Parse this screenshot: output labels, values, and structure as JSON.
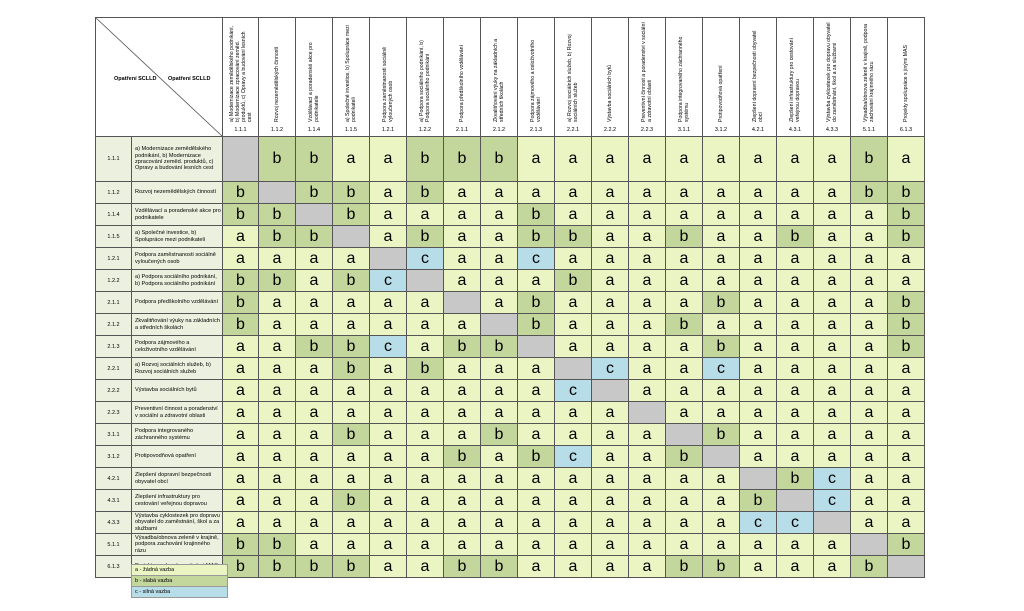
{
  "corner": {
    "left_label": "Opatření SCLLD",
    "right_label": "Opatření SCLLD"
  },
  "columns": [
    {
      "code": "1.1.1",
      "title": "a) Modernizace zemědělského podnikání, b) Modernizace zpracování zeměd. produktů, c) Opravy a budování lesních cest"
    },
    {
      "code": "1.1.2",
      "title": "Rozvoj nezemědělských činností"
    },
    {
      "code": "1.1.4",
      "title": "Vzdělávací a poradenské akce pro podnikatele"
    },
    {
      "code": "1.1.5",
      "title": "a) Společné investice, b) Spolupráce mezi podnikateli"
    },
    {
      "code": "1.2.1",
      "title": "Podpora zaměstnanosti sociálně vyloučených osob"
    },
    {
      "code": "1.2.2",
      "title": "a) Podpora sociálního podnikání, b) Podpora sociálního podnikání"
    },
    {
      "code": "2.1.1",
      "title": "Podpora předškolního vzdělávání"
    },
    {
      "code": "2.1.2",
      "title": "Zkvalitňování výuky na základních a středních školách"
    },
    {
      "code": "2.1.3",
      "title": "Podpora zájmového a celoživotního vzdělávání"
    },
    {
      "code": "2.2.1",
      "title": "a) Rozvoj sociálních služeb, b) Rozvoj sociálních služeb"
    },
    {
      "code": "2.2.2",
      "title": "Výstavba sociálních bytů"
    },
    {
      "code": "2.2.3",
      "title": "Preventivní činnost a poradenství v sociální a zdravotní oblasti"
    },
    {
      "code": "3.1.1",
      "title": "Podpora integrovaného záchranného systému"
    },
    {
      "code": "3.1.2",
      "title": "Protipovodňová opatření"
    },
    {
      "code": "4.2.1",
      "title": "Zlepšení dopravní bezpečnosti obyvatel obcí"
    },
    {
      "code": "4.3.1",
      "title": "Zlepšení infrastruktury pro cestování veřejnou dopravou"
    },
    {
      "code": "4.3.3",
      "title": "Výstavba cyklostezek pro dopravu obyvatel do zaměstnání, škol a za službami"
    },
    {
      "code": "5.1.1",
      "title": "Výsadba/obnova zeleně v krajině, podpora zachování krajinného rázu"
    },
    {
      "code": "6.1.3",
      "title": "Projekty spolupráce s jinými MAS"
    }
  ],
  "rows": [
    {
      "code": "1.1.1",
      "label": "a) Modernizace zemědělského podnikání, b) Modernizace zpracování zeměd. produktů, c) Opravy a budování lesních cest",
      "values": [
        "",
        "b",
        "b",
        "a",
        "a",
        "b",
        "b",
        "b",
        "a",
        "a",
        "a",
        "a",
        "a",
        "a",
        "a",
        "a",
        "a",
        "b",
        "a"
      ]
    },
    {
      "code": "1.1.2",
      "label": "Rozvoj nezemědělských činností",
      "values": [
        "b",
        "",
        "b",
        "b",
        "a",
        "b",
        "a",
        "a",
        "a",
        "a",
        "a",
        "a",
        "a",
        "a",
        "a",
        "a",
        "a",
        "b",
        "b"
      ]
    },
    {
      "code": "1.1.4",
      "label": "Vzdělávací a poradenské akce pro podnikatele",
      "values": [
        "b",
        "b",
        "",
        "b",
        "a",
        "a",
        "a",
        "a",
        "b",
        "a",
        "a",
        "a",
        "a",
        "a",
        "a",
        "a",
        "a",
        "a",
        "b"
      ]
    },
    {
      "code": "1.1.5",
      "label": "a) Společné investice, b) Spolupráce mezi podnikateli",
      "values": [
        "a",
        "b",
        "b",
        "",
        "a",
        "b",
        "a",
        "a",
        "b",
        "b",
        "a",
        "a",
        "b",
        "a",
        "a",
        "b",
        "a",
        "a",
        "b"
      ]
    },
    {
      "code": "1.2.1",
      "label": "Podpora zaměstnanosti sociálně vyloučených osob",
      "values": [
        "a",
        "a",
        "a",
        "a",
        "",
        "c",
        "a",
        "a",
        "c",
        "a",
        "a",
        "a",
        "a",
        "a",
        "a",
        "a",
        "a",
        "a",
        "a"
      ]
    },
    {
      "code": "1.2.2",
      "label": "a) Podpora sociálního podnikání, b) Podpora sociálního podnikání",
      "values": [
        "b",
        "b",
        "a",
        "b",
        "c",
        "",
        "a",
        "a",
        "a",
        "b",
        "a",
        "a",
        "a",
        "a",
        "a",
        "a",
        "a",
        "a",
        "a"
      ]
    },
    {
      "code": "2.1.1",
      "label": "Podpora předškolního vzdělávání",
      "values": [
        "b",
        "a",
        "a",
        "a",
        "a",
        "a",
        "",
        "a",
        "b",
        "a",
        "a",
        "a",
        "a",
        "b",
        "a",
        "a",
        "a",
        "a",
        "b"
      ]
    },
    {
      "code": "2.1.2",
      "label": "Zkvalitňování výuky na základních a středních školách",
      "values": [
        "b",
        "a",
        "a",
        "a",
        "a",
        "a",
        "a",
        "",
        "b",
        "a",
        "a",
        "a",
        "b",
        "a",
        "a",
        "a",
        "a",
        "a",
        "b"
      ]
    },
    {
      "code": "2.1.3",
      "label": "Podpora zájmového a celoživotního vzdělávání",
      "values": [
        "a",
        "a",
        "b",
        "b",
        "c",
        "a",
        "b",
        "b",
        "",
        "a",
        "a",
        "a",
        "a",
        "b",
        "a",
        "a",
        "a",
        "a",
        "b"
      ]
    },
    {
      "code": "2.2.1",
      "label": "a) Rozvoj sociálních služeb, b) Rozvoj sociálních služeb",
      "values": [
        "a",
        "a",
        "a",
        "b",
        "a",
        "b",
        "a",
        "a",
        "a",
        "",
        "c",
        "a",
        "a",
        "c",
        "a",
        "a",
        "a",
        "a",
        "a"
      ]
    },
    {
      "code": "2.2.2",
      "label": "Výstavba sociálních bytů",
      "values": [
        "a",
        "a",
        "a",
        "a",
        "a",
        "a",
        "a",
        "a",
        "a",
        "c",
        "",
        "a",
        "a",
        "a",
        "a",
        "a",
        "a",
        "a",
        "a"
      ]
    },
    {
      "code": "2.2.3",
      "label": "Preventivní činnost a poradenství v sociální a zdravotní oblasti",
      "values": [
        "a",
        "a",
        "a",
        "a",
        "a",
        "a",
        "a",
        "a",
        "a",
        "a",
        "a",
        "",
        "a",
        "a",
        "a",
        "a",
        "a",
        "a",
        "a"
      ]
    },
    {
      "code": "3.1.1",
      "label": "Podpora integrovaného záchranného systému",
      "values": [
        "a",
        "a",
        "a",
        "b",
        "a",
        "a",
        "a",
        "b",
        "a",
        "a",
        "a",
        "a",
        "",
        "b",
        "a",
        "a",
        "a",
        "a",
        "a"
      ]
    },
    {
      "code": "3.1.2",
      "label": "Protipovodňová opatření",
      "values": [
        "a",
        "a",
        "a",
        "a",
        "a",
        "a",
        "b",
        "a",
        "b",
        "c",
        "a",
        "a",
        "b",
        "",
        "a",
        "a",
        "a",
        "a",
        "a"
      ]
    },
    {
      "code": "4.2.1",
      "label": "Zlepšení dopravní bezpečnosti obyvatel obcí",
      "values": [
        "a",
        "a",
        "a",
        "a",
        "a",
        "a",
        "a",
        "a",
        "a",
        "a",
        "a",
        "a",
        "a",
        "a",
        "",
        "b",
        "c",
        "a",
        "a"
      ]
    },
    {
      "code": "4.3.1",
      "label": "Zlepšení infrastruktury pro cestování veřejnou dopravou",
      "values": [
        "a",
        "a",
        "a",
        "b",
        "a",
        "a",
        "a",
        "a",
        "a",
        "a",
        "a",
        "a",
        "a",
        "a",
        "b",
        "",
        "c",
        "a",
        "a"
      ]
    },
    {
      "code": "4.3.3",
      "label": "Výstavba cyklostezek pro dopravu obyvatel do zaměstnání, škol a za službami",
      "values": [
        "a",
        "a",
        "a",
        "a",
        "a",
        "a",
        "a",
        "a",
        "a",
        "a",
        "a",
        "a",
        "a",
        "a",
        "c",
        "c",
        "",
        "a",
        "a"
      ]
    },
    {
      "code": "5.1.1",
      "label": "Výsadba/obnova zeleně v krajině, podpora zachování krajinného rázu",
      "values": [
        "b",
        "b",
        "a",
        "a",
        "a",
        "a",
        "a",
        "a",
        "a",
        "a",
        "a",
        "a",
        "a",
        "a",
        "a",
        "a",
        "a",
        "",
        "b"
      ]
    },
    {
      "code": "6.1.3",
      "label": "Projekty spolupráce s jinými MAS",
      "values": [
        "b",
        "b",
        "b",
        "b",
        "a",
        "a",
        "b",
        "b",
        "a",
        "a",
        "a",
        "a",
        "b",
        "b",
        "a",
        "a",
        "a",
        "b",
        ""
      ]
    }
  ],
  "legend": [
    {
      "key": "a",
      "text": "a - žádná vazba"
    },
    {
      "key": "b",
      "text": "b - slabá vazba"
    },
    {
      "key": "c",
      "text": "c - silná vazba"
    }
  ],
  "colors": {
    "a": "#ebf5c4",
    "b": "#c3d69b",
    "c": "#b7dde8",
    "self": "#c8c8c8"
  }
}
